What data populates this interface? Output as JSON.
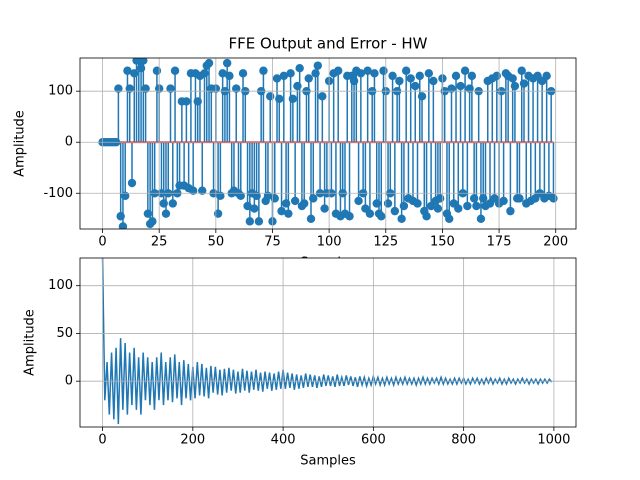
{
  "chart_data": [
    {
      "type": "stem",
      "title": "FFE Output and Error - HW",
      "xlabel": "Samples",
      "ylabel": "Amplitude",
      "color": "#1f77b4",
      "baseline_color": "#d62728",
      "grid": true,
      "xlim": [
        -9.95,
        208.95
      ],
      "ylim": [
        -170,
        165
      ],
      "xticks": [
        0,
        25,
        50,
        75,
        100,
        125,
        150,
        175,
        200
      ],
      "yticks": [
        -100,
        0,
        100
      ],
      "values": [
        0,
        0,
        0,
        0,
        0,
        0,
        0,
        105,
        -145,
        -165,
        -105,
        140,
        105,
        -80,
        135,
        160,
        160,
        145,
        160,
        105,
        -140,
        -160,
        -155,
        -100,
        140,
        105,
        -100,
        -120,
        -140,
        -100,
        105,
        -120,
        140,
        -100,
        -85,
        80,
        -85,
        80,
        -90,
        135,
        -95,
        135,
        80,
        130,
        -95,
        135,
        150,
        155,
        105,
        -100,
        105,
        -140,
        -105,
        135,
        100,
        155,
        130,
        -100,
        -95,
        105,
        -100,
        -105,
        135,
        100,
        -125,
        -155,
        -100,
        -130,
        -105,
        -155,
        100,
        140,
        -115,
        -105,
        90,
        -155,
        -110,
        125,
        85,
        -135,
        130,
        -120,
        -140,
        135,
        85,
        -115,
        110,
        145,
        -125,
        -120,
        100,
        125,
        -150,
        -110,
        135,
        150,
        -100,
        90,
        -130,
        -100,
        120,
        -100,
        135,
        -140,
        140,
        -145,
        -100,
        -140,
        130,
        -145,
        130,
        120,
        140,
        -115,
        135,
        -100,
        -130,
        140,
        -140,
        100,
        135,
        -120,
        -140,
        -145,
        140,
        100,
        -120,
        -100,
        130,
        -135,
        100,
        120,
        -150,
        -125,
        140,
        -110,
        125,
        -115,
        110,
        -120,
        130,
        90,
        -135,
        -145,
        135,
        -125,
        120,
        -115,
        -130,
        -110,
        125,
        100,
        -140,
        -150,
        105,
        -120,
        130,
        -130,
        110,
        -100,
        140,
        -125,
        105,
        130,
        -110,
        -125,
        100,
        -150,
        -110,
        -125,
        120,
        -120,
        125,
        -110,
        130,
        -120,
        100,
        -115,
        135,
        130,
        -135,
        125,
        110,
        -110,
        -110,
        140,
        115,
        -120,
        130,
        -115,
        125,
        -110,
        130,
        -100,
        120,
        -110,
        130,
        -105,
        100,
        -110
      ]
    },
    {
      "type": "line",
      "xlabel": "Samples",
      "ylabel": "Amplitude",
      "color": "#1f77b4",
      "grid": true,
      "xlim": [
        -49.95,
        1048.95
      ],
      "ylim": [
        -48,
        129
      ],
      "xticks": [
        0,
        200,
        400,
        600,
        800,
        1000
      ],
      "yticks": [
        0,
        50,
        100
      ],
      "x": [
        0,
        5,
        10,
        15,
        20,
        25,
        30,
        35,
        40,
        45,
        50,
        55,
        60,
        65,
        70,
        75,
        80,
        85,
        90,
        95,
        100,
        105,
        110,
        115,
        120,
        125,
        130,
        135,
        140,
        145,
        150,
        155,
        160,
        165,
        170,
        175,
        180,
        185,
        190,
        195,
        200,
        205,
        210,
        215,
        220,
        225,
        230,
        235,
        240,
        245,
        250,
        255,
        260,
        265,
        270,
        275,
        280,
        285,
        290,
        295,
        300,
        305,
        310,
        315,
        320,
        325,
        330,
        335,
        340,
        345,
        350,
        355,
        360,
        365,
        370,
        375,
        380,
        385,
        390,
        395,
        400,
        405,
        410,
        415,
        420,
        425,
        430,
        435,
        440,
        445,
        450,
        455,
        460,
        465,
        470,
        475,
        480,
        485,
        490,
        495,
        500,
        505,
        510,
        515,
        520,
        525,
        530,
        535,
        540,
        545,
        550,
        555,
        560,
        565,
        570,
        575,
        580,
        585,
        590,
        595,
        600,
        605,
        610,
        615,
        620,
        625,
        630,
        635,
        640,
        645,
        650,
        655,
        660,
        665,
        670,
        675,
        680,
        685,
        690,
        695,
        700,
        705,
        710,
        715,
        720,
        725,
        730,
        735,
        740,
        745,
        750,
        755,
        760,
        765,
        770,
        775,
        780,
        785,
        790,
        795,
        800,
        805,
        810,
        815,
        820,
        825,
        830,
        835,
        840,
        845,
        850,
        855,
        860,
        865,
        870,
        875,
        880,
        885,
        890,
        895,
        900,
        905,
        910,
        915,
        920,
        925,
        930,
        935,
        940,
        945,
        950,
        955,
        960,
        965,
        970,
        975,
        980,
        985,
        990,
        995
      ],
      "values": [
        130,
        -20,
        20,
        -35,
        30,
        -40,
        35,
        -45,
        45,
        -30,
        40,
        -35,
        30,
        -25,
        35,
        -30,
        25,
        -35,
        30,
        -20,
        25,
        -25,
        20,
        -30,
        25,
        -20,
        30,
        -25,
        20,
        -20,
        25,
        -22,
        28,
        -18,
        20,
        -25,
        22,
        -18,
        18,
        -20,
        15,
        -18,
        20,
        -15,
        18,
        -16,
        14,
        -18,
        16,
        -12,
        15,
        -14,
        12,
        -15,
        13,
        -12,
        14,
        -10,
        12,
        -13,
        10,
        -12,
        13,
        -10,
        11,
        -12,
        10,
        -9,
        12,
        -10,
        9,
        -11,
        10,
        -8,
        9,
        -10,
        8,
        -9,
        10,
        -8,
        12,
        -8,
        9,
        -7,
        8,
        -9,
        7,
        -8,
        6,
        -7,
        8,
        -6,
        7,
        -6,
        6,
        -7,
        5,
        -6,
        7,
        -5,
        6,
        -5,
        5,
        -6,
        7,
        -5,
        4,
        -5,
        6,
        -4,
        5,
        -5,
        4,
        -6,
        5,
        -4,
        4,
        -5,
        3,
        -4,
        5,
        -3,
        4,
        -4,
        3,
        -4,
        4,
        -3,
        3,
        -4,
        4,
        -3,
        3,
        -3,
        4,
        -3,
        3,
        -3,
        3,
        -4,
        3,
        -3,
        4,
        -3,
        3,
        -3,
        3,
        -2,
        3,
        -3,
        4,
        -3,
        3,
        -3,
        2,
        -3,
        3,
        -3,
        3,
        -2,
        3,
        -3,
        2,
        -3,
        3,
        -2,
        3,
        -3,
        2,
        -3,
        3,
        -2,
        3,
        -3,
        2,
        -2,
        3,
        -3,
        2,
        -3,
        3,
        -2,
        2,
        -3,
        2,
        -2,
        3,
        -2,
        2,
        -3,
        2,
        -2,
        2,
        -3,
        2,
        -2,
        2,
        -2,
        2,
        -1
      ]
    }
  ]
}
